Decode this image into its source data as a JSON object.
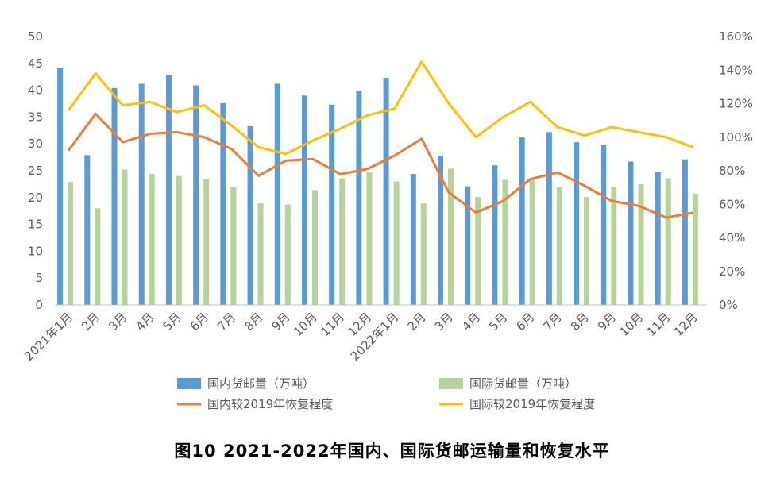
{
  "chart_data": {
    "type": "bar",
    "title": "图10 2021-2022年国内、国际货邮运输量和恢复水平",
    "categories": [
      "2021年1月",
      "2月",
      "3月",
      "4月",
      "5月",
      "6月",
      "7月",
      "8月",
      "9月",
      "10月",
      "11月",
      "12月",
      "2022年1月",
      "2月",
      "3月",
      "4月",
      "5月",
      "6月",
      "7月",
      "8月",
      "9月",
      "10月",
      "11月",
      "12月"
    ],
    "y_left": {
      "ylim": [
        0,
        50
      ],
      "ticks": [
        "0",
        "5",
        "10",
        "15",
        "20",
        "25",
        "30",
        "35",
        "40",
        "45",
        "50"
      ]
    },
    "y_right": {
      "ylim": [
        0,
        160
      ],
      "ticks": [
        "0%",
        "20%",
        "40%",
        "60%",
        "80%",
        "100%",
        "120%",
        "140%",
        "160%"
      ]
    },
    "series": [
      {
        "name": "国内货邮量（万吨）",
        "kind": "bar",
        "axis": "left",
        "color": "#5b9bd5",
        "values": [
          44.1,
          27.9,
          40.4,
          41.2,
          42.8,
          40.9,
          37.6,
          33.3,
          41.2,
          39.0,
          37.3,
          39.8,
          42.3,
          24.4,
          27.8,
          22.1,
          26.0,
          31.2,
          32.2,
          30.3,
          29.8,
          26.7,
          24.7,
          27.1
        ]
      },
      {
        "name": "国际货邮量（万吨）",
        "kind": "bar",
        "axis": "left",
        "color": "#b5d39b",
        "values": [
          22.9,
          18.0,
          25.2,
          24.4,
          24.0,
          23.4,
          21.9,
          18.9,
          18.7,
          21.4,
          23.6,
          24.7,
          23.0,
          18.9,
          25.4,
          20.1,
          23.3,
          23.6,
          21.9,
          20.1,
          22.0,
          22.5,
          23.6,
          20.7
        ]
      },
      {
        "name": "国内较2019年恢复程度",
        "kind": "line",
        "axis": "right",
        "color": "#ed7d31",
        "values": [
          92,
          114,
          97,
          102,
          103,
          100,
          93,
          77,
          86,
          87,
          78,
          81,
          89,
          99,
          67,
          55,
          62,
          75,
          79,
          71,
          62,
          59,
          52,
          55
        ]
      },
      {
        "name": "国际较2019年恢复程度",
        "kind": "line",
        "axis": "right",
        "color": "#ffc000",
        "values": [
          116,
          138,
          119,
          121,
          115,
          119,
          107,
          94,
          90,
          98,
          105,
          113,
          117,
          145,
          120,
          100,
          112,
          121,
          106,
          101,
          106,
          103,
          100,
          94
        ]
      }
    ],
    "legend": {
      "position": "bottom"
    },
    "grid": false
  }
}
